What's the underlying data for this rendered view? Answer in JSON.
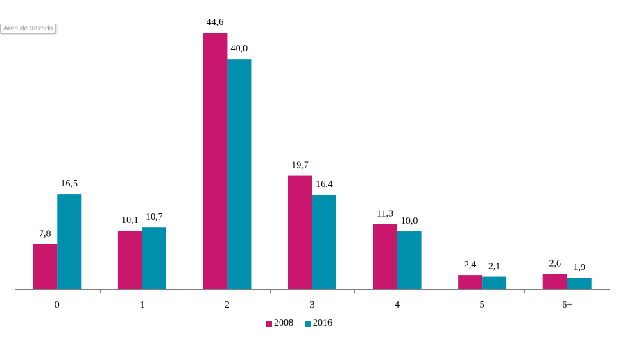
{
  "tooltip": "Área de trazado",
  "chart_data": {
    "type": "bar",
    "categories": [
      "0",
      "1",
      "2",
      "3",
      "4",
      "5",
      "6+"
    ],
    "series": [
      {
        "name": "2008",
        "color": "#c8176c",
        "values": [
          7.8,
          10.1,
          44.6,
          19.7,
          11.3,
          2.4,
          2.6
        ],
        "labels": [
          "7,8",
          "10,1",
          "44,6",
          "19,7",
          "11,3",
          "2,4",
          "2,6"
        ]
      },
      {
        "name": "2016",
        "color": "#008fad",
        "values": [
          16.5,
          10.7,
          40.0,
          16.4,
          10.0,
          2.1,
          1.9
        ],
        "labels": [
          "16,5",
          "10,7",
          "40,0",
          "16,4",
          "10,0",
          "2,1",
          "1,9"
        ]
      }
    ],
    "title": "",
    "xlabel": "",
    "ylabel": "",
    "ylim": [
      0,
      45
    ],
    "grid": false,
    "legend_position": "bottom"
  }
}
